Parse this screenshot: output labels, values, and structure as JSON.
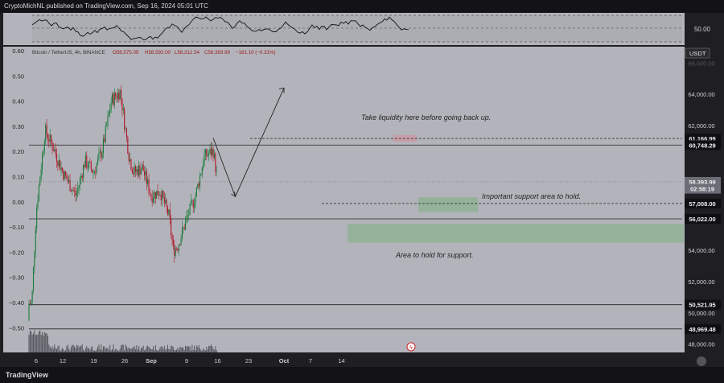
{
  "header": {
    "text": "CryptoMichNL published on TradingView.com, Sep 16, 2024 05:01 UTC"
  },
  "footer": {
    "brand": "TradingView"
  },
  "osc": {
    "level_label": "50.00"
  },
  "legend": {
    "symbol": "Bitcoin / TetherUS, 4h, BINANCE",
    "o": "O58,575.09",
    "h": "H58,592.00",
    "l": "L58,312.54",
    "c": "C58,393.99",
    "chg": "−181.10 (−0.31%)"
  },
  "currency": "USDT",
  "left_axis_ticks": [
    "0.60",
    "0.50",
    "0.40",
    "0.30",
    "0.20",
    "0.10",
    "0.00",
    "−0.10",
    "−0.20",
    "−0.30",
    "−0.40",
    "−0.50"
  ],
  "right_axis_ticks": [
    "64,000.00",
    "62,000.00",
    "54,000.00",
    "52,000.00",
    "50,000.00",
    "48,000.00"
  ],
  "right_axis_faint_ticks": [
    "66,000.00",
    "58,000.00"
  ],
  "price_labels": [
    {
      "text": "61,166.99",
      "price": 61167
    },
    {
      "text": "60,748.29",
      "price": 60748
    },
    {
      "text": "58,393.99",
      "price": 58394
    },
    {
      "text": "02:58:19",
      "price": 57950
    },
    {
      "text": "57,008.00",
      "price": 57008
    },
    {
      "text": "56,022.00",
      "price": 56022
    },
    {
      "text": "50,521.95",
      "price": 50522
    },
    {
      "text": "48,969.48",
      "price": 48969
    }
  ],
  "time_labels": [
    "6",
    "12",
    "19",
    "26",
    "Sep",
    "9",
    "16",
    "23",
    "Oct",
    "7",
    "14"
  ],
  "annotations": {
    "liquidity": "Take liquidity here before going back up.",
    "support_important": "Important support area to hold.",
    "support_area": "Area to hold for support."
  },
  "chart_data": {
    "type": "candlestick",
    "symbol": "Bitcoin / TetherUS",
    "timeframe": "4h",
    "exchange": "BINANCE",
    "last_candle": {
      "open": 58575.09,
      "high": 58592.0,
      "low": 58312.54,
      "close": 58393.99,
      "change": -181.1,
      "change_pct": -0.31
    },
    "y_range": [
      47700,
      66900
    ],
    "horizontal_levels": [
      61166.99,
      60748.29,
      57008.0,
      56022.0,
      50521.95,
      48969.48
    ],
    "zones": [
      {
        "label": "liquidity",
        "price_low": 60950,
        "price_high": 61400
      },
      {
        "label": "support_important",
        "price_low": 56450,
        "price_high": 57400
      },
      {
        "label": "support_area",
        "price_low": 54500,
        "price_high": 55700
      }
    ],
    "projection_path": [
      {
        "date": "2024-09-15",
        "price": 61200
      },
      {
        "date": "2024-09-20",
        "price": 57450
      },
      {
        "date": "2024-10-01",
        "price": 64400
      }
    ],
    "price_waypoints": [
      {
        "date": "2024-08-05",
        "price": 50600
      },
      {
        "date": "2024-08-06",
        "price": 56500
      },
      {
        "date": "2024-08-08",
        "price": 61700
      },
      {
        "date": "2024-08-10",
        "price": 60500
      },
      {
        "date": "2024-08-12",
        "price": 59000
      },
      {
        "date": "2024-08-15",
        "price": 57500
      },
      {
        "date": "2024-08-17",
        "price": 59700
      },
      {
        "date": "2024-08-19",
        "price": 59000
      },
      {
        "date": "2024-08-21",
        "price": 60500
      },
      {
        "date": "2024-08-23",
        "price": 63600
      },
      {
        "date": "2024-08-25",
        "price": 64200
      },
      {
        "date": "2024-08-27",
        "price": 60000
      },
      {
        "date": "2024-08-28",
        "price": 59000
      },
      {
        "date": "2024-08-30",
        "price": 59300
      },
      {
        "date": "2024-09-01",
        "price": 57500
      },
      {
        "date": "2024-09-03",
        "price": 57800
      },
      {
        "date": "2024-09-05",
        "price": 56200
      },
      {
        "date": "2024-09-06",
        "price": 54000
      },
      {
        "date": "2024-09-07",
        "price": 54300
      },
      {
        "date": "2024-09-09",
        "price": 56000
      },
      {
        "date": "2024-09-11",
        "price": 57500
      },
      {
        "date": "2024-09-13",
        "price": 60000
      },
      {
        "date": "2024-09-14",
        "price": 60200
      },
      {
        "date": "2024-09-15",
        "price": 60400
      },
      {
        "date": "2024-09-16",
        "price": 58394
      }
    ]
  }
}
